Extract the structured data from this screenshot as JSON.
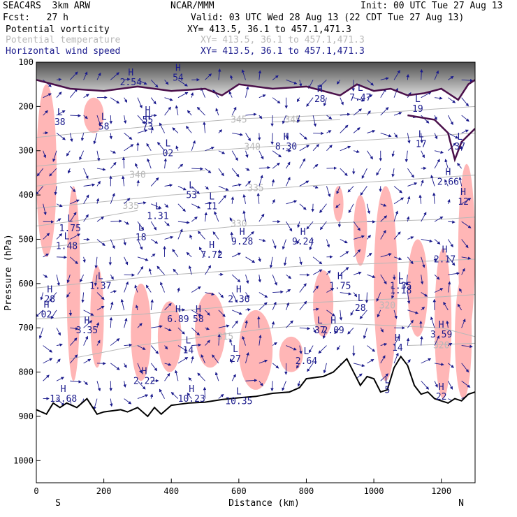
{
  "header": {
    "model": "SEAC4RS  3km ARW",
    "org": "NCAR/MMM",
    "init": "Init: 00 UTC Tue 27 Aug 13",
    "fcst": "Fcst:   27 h",
    "valid": "Valid: 03 UTC Wed 28 Aug 13 (22 CDT Tue 27 Aug 13)",
    "fields": [
      {
        "name": "Potential vorticity",
        "xy": "XY= 413.5, 36.1 to 457.1,471.3",
        "color": "#000000"
      },
      {
        "name": "Potential temperature",
        "xy": "XY= 413.5, 36.1 to 457.1,471.3",
        "color": "#b8b8b8"
      },
      {
        "name": "Horizontal wind speed",
        "xy": "XY= 413.5, 36.1 to 457.1,471.3",
        "color": "#1a1a8c"
      }
    ]
  },
  "chart_data": {
    "type": "cross-section",
    "xlabel": "Distance (km)",
    "ylabel": "Pressure (hPa)",
    "xlim": [
      0,
      1300
    ],
    "ylim": [
      1050,
      100
    ],
    "x_ticks": [
      0,
      200,
      400,
      600,
      800,
      1000,
      1200
    ],
    "y_ticks": [
      100,
      200,
      300,
      400,
      500,
      600,
      700,
      800,
      900,
      1000
    ],
    "endpoint_left": "S",
    "endpoint_right": "N",
    "colors": {
      "pv": "#4a0f4a",
      "theta": "#b8b8b8",
      "wind": "#1a1a8c",
      "speed_shade": "#ffb6b6",
      "terrain": "#000000"
    },
    "theta_contours": [
      {
        "label": "345",
        "points": [
          [
            0,
            270
          ],
          [
            200,
            255
          ],
          [
            400,
            240
          ],
          [
            600,
            228
          ],
          [
            800,
            222
          ],
          [
            1000,
            215
          ],
          [
            1200,
            205
          ],
          [
            1300,
            200
          ]
        ],
        "label_at": [
          600,
          230
        ]
      },
      {
        "label": "345",
        "points": [
          [
            700,
            235
          ],
          [
            900,
            230
          ]
        ],
        "label_at": [
          760,
          230
        ]
      },
      {
        "label": "340",
        "points": [
          [
            0,
            335
          ],
          [
            200,
            320
          ],
          [
            400,
            305
          ],
          [
            600,
            295
          ],
          [
            800,
            285
          ],
          [
            1000,
            275
          ],
          [
            1200,
            265
          ],
          [
            1300,
            260
          ]
        ],
        "label_at": [
          640,
          292
        ]
      },
      {
        "label": "340",
        "points": [
          [
            0,
            380
          ],
          [
            150,
            365
          ],
          [
            300,
            352
          ],
          [
            500,
            345
          ]
        ],
        "label_at": [
          300,
          355
        ]
      },
      {
        "label": "335",
        "points": [
          [
            0,
            430
          ],
          [
            200,
            415
          ],
          [
            400,
            400
          ],
          [
            600,
            390
          ],
          [
            800,
            380
          ],
          [
            1000,
            370
          ],
          [
            1200,
            360
          ],
          [
            1300,
            355
          ]
        ],
        "label_at": [
          650,
          385
        ]
      },
      {
        "label": "335",
        "points": [
          [
            0,
            470
          ],
          [
            150,
            455
          ],
          [
            300,
            435
          ]
        ],
        "label_at": [
          280,
          425
        ]
      },
      {
        "label": "330",
        "points": [
          [
            0,
            520
          ],
          [
            200,
            505
          ],
          [
            400,
            485
          ],
          [
            600,
            470
          ],
          [
            800,
            465
          ],
          [
            1000,
            460
          ],
          [
            1200,
            455
          ],
          [
            1300,
            450
          ]
        ],
        "label_at": [
          600,
          465
        ]
      },
      {
        "label": "",
        "points": [
          [
            0,
            610
          ],
          [
            200,
            595
          ],
          [
            400,
            580
          ],
          [
            600,
            570
          ],
          [
            800,
            560
          ],
          [
            1000,
            555
          ],
          [
            1200,
            548
          ],
          [
            1300,
            545
          ]
        ],
        "label_at": null
      },
      {
        "label": "320",
        "points": [
          [
            0,
            680
          ],
          [
            300,
            670
          ],
          [
            600,
            650
          ],
          [
            900,
            640
          ],
          [
            1200,
            630
          ],
          [
            1300,
            625
          ]
        ],
        "label_at": [
          1040,
          650
        ]
      },
      {
        "label": "315",
        "points": [
          [
            100,
            770
          ],
          [
            300,
            740
          ],
          [
            500,
            720
          ],
          [
            700,
            700
          ],
          [
            900,
            690
          ],
          [
            1200,
            700
          ],
          [
            1300,
            720
          ]
        ],
        "label_at": [
          560,
          720
        ]
      },
      {
        "label": "320",
        "points": [
          [
            1100,
            740
          ],
          [
            1300,
            735
          ]
        ],
        "label_at": [
          1200,
          740
        ]
      }
    ],
    "pv_contour_tropopause": [
      [
        0,
        140
      ],
      [
        100,
        160
      ],
      [
        200,
        165
      ],
      [
        300,
        155
      ],
      [
        400,
        165
      ],
      [
        500,
        160
      ],
      [
        550,
        175
      ],
      [
        600,
        150
      ],
      [
        700,
        160
      ],
      [
        800,
        155
      ],
      [
        900,
        175
      ],
      [
        950,
        150
      ],
      [
        1000,
        165
      ],
      [
        1050,
        160
      ],
      [
        1100,
        175
      ],
      [
        1150,
        170
      ],
      [
        1200,
        160
      ],
      [
        1250,
        185
      ],
      [
        1280,
        150
      ],
      [
        1300,
        140
      ]
    ],
    "pv_contour_secondary": [
      [
        1100,
        220
      ],
      [
        1180,
        230
      ],
      [
        1220,
        260
      ],
      [
        1240,
        320
      ],
      [
        1260,
        280
      ],
      [
        1300,
        250
      ]
    ],
    "stratosphere_shade_top": 190,
    "terrain": [
      [
        0,
        885
      ],
      [
        30,
        895
      ],
      [
        50,
        870
      ],
      [
        70,
        880
      ],
      [
        90,
        870
      ],
      [
        120,
        880
      ],
      [
        150,
        860
      ],
      [
        180,
        895
      ],
      [
        200,
        890
      ],
      [
        250,
        885
      ],
      [
        270,
        890
      ],
      [
        300,
        880
      ],
      [
        330,
        900
      ],
      [
        350,
        880
      ],
      [
        370,
        895
      ],
      [
        400,
        875
      ],
      [
        450,
        870
      ],
      [
        500,
        868
      ],
      [
        550,
        862
      ],
      [
        600,
        858
      ],
      [
        650,
        855
      ],
      [
        700,
        848
      ],
      [
        750,
        845
      ],
      [
        780,
        835
      ],
      [
        800,
        815
      ],
      [
        850,
        810
      ],
      [
        880,
        800
      ],
      [
        900,
        785
      ],
      [
        920,
        770
      ],
      [
        940,
        800
      ],
      [
        960,
        830
      ],
      [
        980,
        810
      ],
      [
        1000,
        815
      ],
      [
        1020,
        845
      ],
      [
        1040,
        840
      ],
      [
        1060,
        790
      ],
      [
        1080,
        765
      ],
      [
        1100,
        785
      ],
      [
        1120,
        830
      ],
      [
        1140,
        850
      ],
      [
        1160,
        845
      ],
      [
        1180,
        860
      ],
      [
        1200,
        865
      ],
      [
        1220,
        870
      ],
      [
        1240,
        860
      ],
      [
        1260,
        865
      ],
      [
        1280,
        850
      ],
      [
        1300,
        845
      ]
    ],
    "speed_shade_regions": [
      {
        "x": [
          0,
          60
        ],
        "p": [
          150,
          540
        ]
      },
      {
        "x": [
          140,
          200
        ],
        "p": [
          180,
          260
        ]
      },
      {
        "x": [
          90,
          130
        ],
        "p": [
          380,
          820
        ]
      },
      {
        "x": [
          160,
          200
        ],
        "p": [
          560,
          790
        ]
      },
      {
        "x": [
          280,
          340
        ],
        "p": [
          600,
          820
        ]
      },
      {
        "x": [
          360,
          430
        ],
        "p": [
          640,
          800
        ]
      },
      {
        "x": [
          470,
          560
        ],
        "p": [
          620,
          790
        ]
      },
      {
        "x": [
          600,
          700
        ],
        "p": [
          660,
          840
        ]
      },
      {
        "x": [
          720,
          790
        ],
        "p": [
          720,
          800
        ]
      },
      {
        "x": [
          820,
          880
        ],
        "p": [
          570,
          720
        ]
      },
      {
        "x": [
          880,
          910
        ],
        "p": [
          380,
          460
        ]
      },
      {
        "x": [
          940,
          980
        ],
        "p": [
          400,
          560
        ]
      },
      {
        "x": [
          1000,
          1070
        ],
        "p": [
          380,
          820
        ]
      },
      {
        "x": [
          1100,
          1160
        ],
        "p": [
          500,
          720
        ]
      },
      {
        "x": [
          1180,
          1230
        ],
        "p": [
          520,
          860
        ]
      },
      {
        "x": [
          1250,
          1300
        ],
        "p": [
          330,
          720
        ]
      },
      {
        "x": [
          1240,
          1290
        ],
        "p": [
          580,
          860
        ]
      }
    ],
    "extrema": [
      {
        "type": "H",
        "x": 280,
        "p": 130,
        "value": "2.54"
      },
      {
        "type": "H",
        "x": 420,
        "p": 120,
        "value": "54"
      },
      {
        "type": "H",
        "x": 840,
        "p": 168,
        "value": "28"
      },
      {
        "type": "L",
        "x": 960,
        "p": 165,
        "value": "7.47"
      },
      {
        "type": "L",
        "x": 1130,
        "p": 190,
        "value": "19"
      },
      {
        "type": "L",
        "x": 70,
        "p": 220,
        "value": "38"
      },
      {
        "type": "L",
        "x": 200,
        "p": 230,
        "value": "58"
      },
      {
        "type": "H",
        "x": 330,
        "p": 215,
        "value": "55"
      },
      {
        "type": "H",
        "x": 330,
        "p": 230,
        "value": "73"
      },
      {
        "type": "L",
        "x": 390,
        "p": 290,
        "value": "02"
      },
      {
        "type": "H",
        "x": 740,
        "p": 275,
        "value": "8.30"
      },
      {
        "type": "L",
        "x": 1140,
        "p": 270,
        "value": "17"
      },
      {
        "type": "L",
        "x": 1255,
        "p": 275,
        "value": "37"
      },
      {
        "type": "H",
        "x": 1220,
        "p": 355,
        "value": "2.66"
      },
      {
        "type": "H",
        "x": 1265,
        "p": 400,
        "value": "12"
      },
      {
        "type": "L",
        "x": 460,
        "p": 385,
        "value": "53"
      },
      {
        "type": "L",
        "x": 520,
        "p": 410,
        "value": "11"
      },
      {
        "type": "L",
        "x": 360,
        "p": 432,
        "value": "1.31"
      },
      {
        "type": "L",
        "x": 100,
        "p": 460,
        "value": "1.75"
      },
      {
        "type": "L",
        "x": 310,
        "p": 480,
        "value": "18"
      },
      {
        "type": "H",
        "x": 610,
        "p": 490,
        "value": "9.28"
      },
      {
        "type": "H",
        "x": 790,
        "p": 490,
        "value": "9.24"
      },
      {
        "type": "L",
        "x": 90,
        "p": 500,
        "value": "1.48"
      },
      {
        "type": "H",
        "x": 520,
        "p": 520,
        "value": "7.72"
      },
      {
        "type": "H",
        "x": 1210,
        "p": 530,
        "value": "2.17"
      },
      {
        "type": "L",
        "x": 190,
        "p": 590,
        "value": "1.37"
      },
      {
        "type": "H",
        "x": 900,
        "p": 590,
        "value": "1.75"
      },
      {
        "type": "L",
        "x": 1080,
        "p": 590,
        "value": "1.35"
      },
      {
        "type": "H",
        "x": 40,
        "p": 620,
        "value": "28"
      },
      {
        "type": "L",
        "x": 1080,
        "p": 600,
        "value": "1.18"
      },
      {
        "type": "H",
        "x": 600,
        "p": 620,
        "value": "2.36"
      },
      {
        "type": "H",
        "x": 30,
        "p": 655,
        "value": "02"
      },
      {
        "type": "L",
        "x": 960,
        "p": 640,
        "value": "28"
      },
      {
        "type": "H",
        "x": 420,
        "p": 665,
        "value": "6.89"
      },
      {
        "type": "H",
        "x": 480,
        "p": 665,
        "value": "58"
      },
      {
        "type": "H",
        "x": 150,
        "p": 690,
        "value": "3.35"
      },
      {
        "type": "L",
        "x": 840,
        "p": 690,
        "value": "37"
      },
      {
        "type": "H",
        "x": 880,
        "p": 690,
        "value": "2.09"
      },
      {
        "type": "H",
        "x": 1200,
        "p": 700,
        "value": "3.59"
      },
      {
        "type": "L",
        "x": 450,
        "p": 735,
        "value": "14"
      },
      {
        "type": "H",
        "x": 1070,
        "p": 730,
        "value": "14"
      },
      {
        "type": "L",
        "x": 590,
        "p": 755,
        "value": "27"
      },
      {
        "type": "L",
        "x": 800,
        "p": 760,
        "value": "2.64"
      },
      {
        "type": "H",
        "x": 320,
        "p": 805,
        "value": "2.22"
      },
      {
        "type": "H",
        "x": 460,
        "p": 845,
        "value": "10.23"
      },
      {
        "type": "L",
        "x": 600,
        "p": 850,
        "value": "10.35"
      },
      {
        "type": "H",
        "x": 80,
        "p": 845,
        "value": "13.68"
      },
      {
        "type": "L",
        "x": 1040,
        "p": 825,
        "value": "5"
      },
      {
        "type": "H",
        "x": 1200,
        "p": 840,
        "value": "22"
      }
    ]
  }
}
